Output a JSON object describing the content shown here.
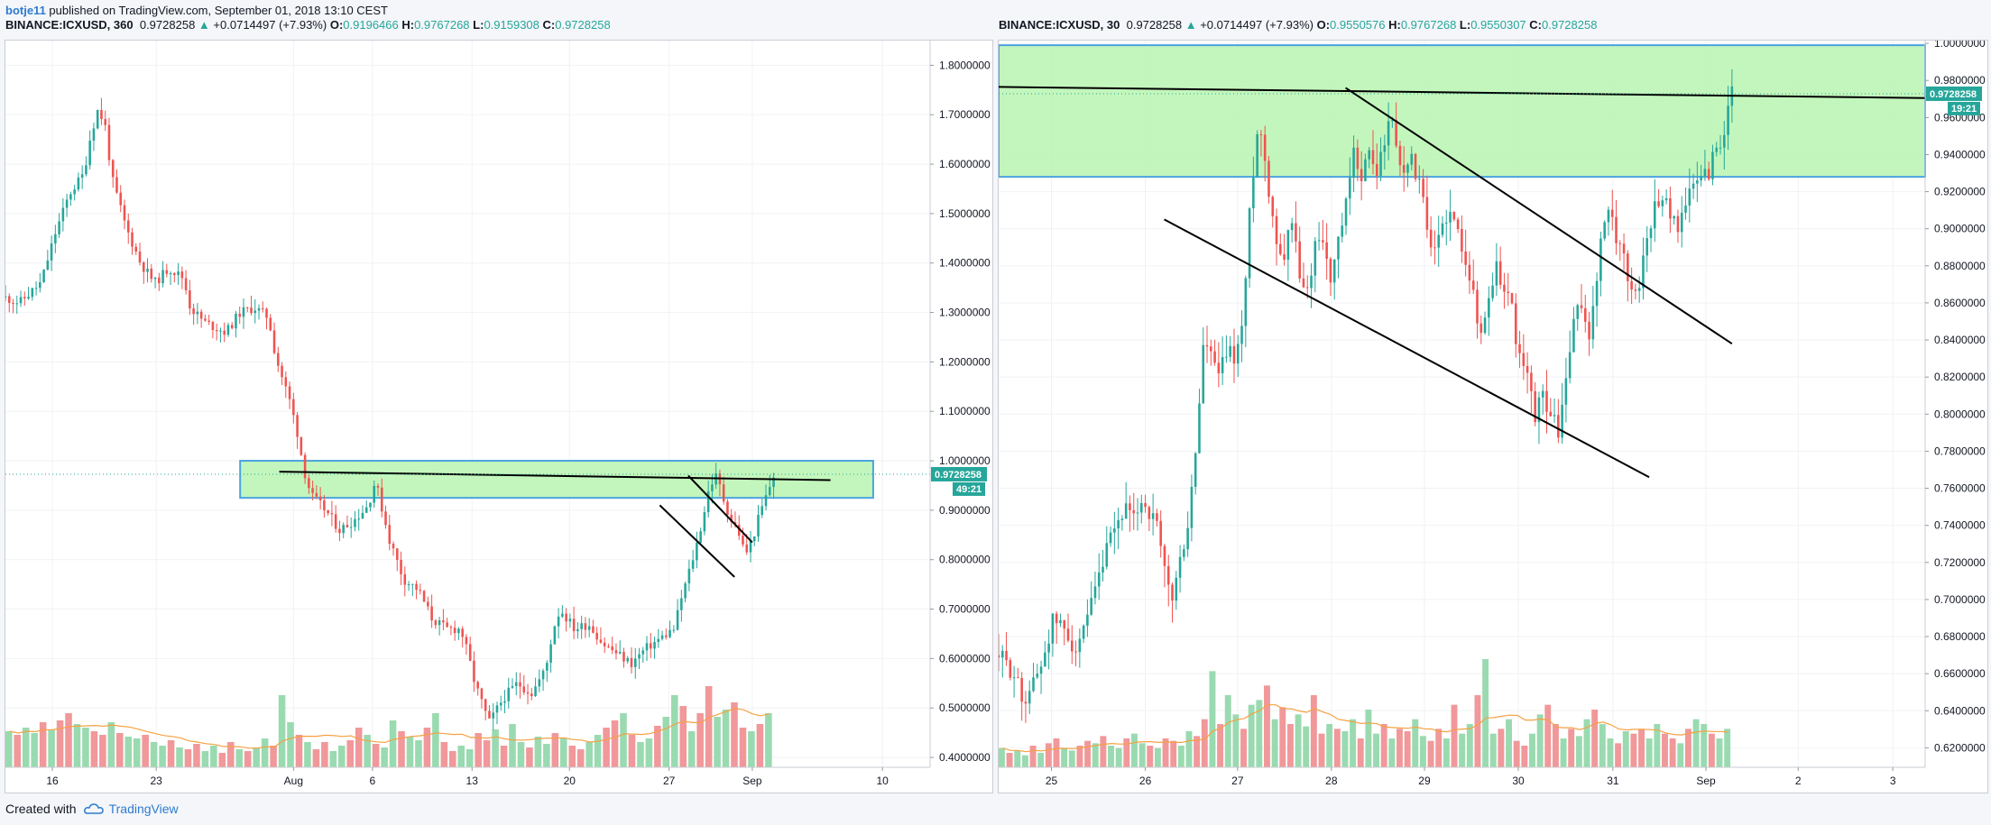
{
  "topbar": {
    "user": "botje11",
    "text": " published on TradingView.com, September 01, 2018 13:10 CEST"
  },
  "footer": {
    "created_with": "Created with",
    "brand": "TradingView"
  },
  "colors": {
    "up": "#26a69a",
    "down": "#ef5350",
    "zone_fill": "#b8f5b0",
    "zone_border": "#4aa3e0",
    "volume_up": "#8fd6a7",
    "volume_down": "#f08d8f",
    "ma": "#f5a142"
  },
  "chart_data": [
    {
      "type": "candlestick",
      "symbol": "BINANCE:ICXUSD",
      "interval": "360",
      "last": "0.9728258",
      "change": "+0.0714497 (+7.93%)",
      "O": "0.9196466",
      "H": "0.9767268",
      "L": "0.9159308",
      "C": "0.9728258",
      "price_label": "0.9728258",
      "countdown": "49:21",
      "y_ticks": [
        "1.8000000",
        "1.7000000",
        "1.6000000",
        "1.5000000",
        "1.4000000",
        "1.3000000",
        "1.2000000",
        "1.1000000",
        "1.0000000",
        "0.9000000",
        "0.8000000",
        "0.7000000",
        "0.6000000",
        "0.5000000",
        "0.4000000"
      ],
      "x_ticks": [
        "16",
        "23",
        "Aug",
        "6",
        "13",
        "20",
        "27",
        "Sep",
        "10"
      ],
      "ylim": [
        0.38,
        1.85
      ],
      "price_path": [
        [
          0,
          1.33
        ],
        [
          2,
          1.32
        ],
        [
          5,
          1.36
        ],
        [
          7,
          1.46
        ],
        [
          9,
          1.54
        ],
        [
          11,
          1.58
        ],
        [
          12,
          1.66
        ],
        [
          13,
          1.71
        ],
        [
          14,
          1.68
        ],
        [
          15,
          1.57
        ],
        [
          17,
          1.47
        ],
        [
          19,
          1.4
        ],
        [
          21,
          1.36
        ],
        [
          23,
          1.39
        ],
        [
          25,
          1.37
        ],
        [
          26,
          1.31
        ],
        [
          28,
          1.28
        ],
        [
          31,
          1.26
        ],
        [
          33,
          1.3
        ],
        [
          35,
          1.31
        ],
        [
          37,
          1.29
        ],
        [
          38,
          1.21
        ],
        [
          40,
          1.12
        ],
        [
          41,
          1.06
        ],
        [
          42,
          0.98
        ],
        [
          43,
          0.93
        ],
        [
          45,
          0.9
        ],
        [
          47,
          0.86
        ],
        [
          49,
          0.88
        ],
        [
          51,
          0.91
        ],
        [
          52,
          0.96
        ],
        [
          54,
          0.84
        ],
        [
          56,
          0.76
        ],
        [
          58,
          0.74
        ],
        [
          60,
          0.68
        ],
        [
          62,
          0.66
        ],
        [
          64,
          0.66
        ],
        [
          65,
          0.61
        ],
        [
          66,
          0.55
        ],
        [
          68,
          0.47
        ],
        [
          70,
          0.52
        ],
        [
          72,
          0.55
        ],
        [
          74,
          0.53
        ],
        [
          76,
          0.58
        ],
        [
          77,
          0.66
        ],
        [
          78,
          0.7
        ],
        [
          80,
          0.66
        ],
        [
          82,
          0.67
        ],
        [
          84,
          0.63
        ],
        [
          86,
          0.61
        ],
        [
          88,
          0.59
        ],
        [
          90,
          0.62
        ],
        [
          92,
          0.64
        ],
        [
          94,
          0.66
        ],
        [
          95,
          0.72
        ],
        [
          97,
          0.82
        ],
        [
          98,
          0.88
        ],
        [
          99,
          0.95
        ],
        [
          100,
          0.97
        ],
        [
          101,
          0.92
        ],
        [
          102,
          0.88
        ],
        [
          103,
          0.86
        ],
        [
          104,
          0.81
        ],
        [
          105,
          0.84
        ],
        [
          106,
          0.89
        ],
        [
          107,
          0.93
        ],
        [
          108,
          0.97
        ]
      ],
      "x_domain": [
        0,
        130
      ],
      "x_tick_positions": [
        6.6,
        21.2,
        40.5,
        51.6,
        65.6,
        79.3,
        93.3,
        105,
        123.3
      ],
      "volume": [
        20,
        18,
        22,
        19,
        25,
        21,
        26,
        30,
        24,
        22,
        20,
        18,
        25,
        19,
        17,
        16,
        18,
        14,
        12,
        15,
        11,
        10,
        13,
        9,
        12,
        8,
        14,
        10,
        9,
        11,
        16,
        12,
        40,
        25,
        18,
        14,
        10,
        14,
        9,
        12,
        15,
        22,
        18,
        13,
        11,
        26,
        20,
        17,
        15,
        22,
        30,
        14,
        9,
        12,
        10,
        19,
        15,
        21,
        12,
        24,
        14,
        11,
        17,
        13,
        19,
        16,
        12,
        10,
        14,
        18,
        22,
        26,
        30,
        18,
        14,
        16,
        23,
        28,
        40,
        34,
        20,
        30,
        45,
        28,
        32,
        36,
        22,
        20,
        24,
        30
      ],
      "zone": {
        "y0": 0.925,
        "y1": 1.0,
        "x0": 33,
        "x1": 122
      },
      "lines": [
        {
          "from": [
            38.5,
            0.978
          ],
          "to": [
            116,
            0.961
          ]
        },
        {
          "from": [
            92,
            0.91
          ],
          "to": [
            102.5,
            0.765
          ]
        },
        {
          "from": [
            96,
            0.97
          ],
          "to": [
            105,
            0.835
          ]
        }
      ]
    },
    {
      "type": "candlestick",
      "symbol": "BINANCE:ICXUSD",
      "interval": "30",
      "last": "0.9728258",
      "change": "+0.0714497 (+7.93%)",
      "O": "0.9550576",
      "H": "0.9767268",
      "L": "0.9550307",
      "C": "0.9728258",
      "price_label": "0.9728258",
      "countdown": "19:21",
      "y_ticks": [
        "1.0000000",
        "0.9800000",
        "0.9600000",
        "0.9400000",
        "0.9200000",
        "0.9000000",
        "0.8800000",
        "0.8600000",
        "0.8400000",
        "0.8200000",
        "0.8000000",
        "0.7800000",
        "0.7600000",
        "0.7400000",
        "0.7200000",
        "0.7000000",
        "0.6800000",
        "0.6600000",
        "0.6400000",
        "0.6200000"
      ],
      "x_ticks": [
        "25",
        "26",
        "27",
        "28",
        "29",
        "30",
        "31",
        "Sep",
        "2",
        "3"
      ],
      "ylim": [
        0.6095,
        1.0015
      ],
      "price_path": [
        [
          0,
          0.67
        ],
        [
          2,
          0.66
        ],
        [
          3,
          0.645
        ],
        [
          5,
          0.66
        ],
        [
          7,
          0.69
        ],
        [
          9,
          0.68
        ],
        [
          10,
          0.67
        ],
        [
          12,
          0.7
        ],
        [
          14,
          0.73
        ],
        [
          16,
          0.75
        ],
        [
          17,
          0.74
        ],
        [
          18,
          0.755
        ],
        [
          20,
          0.74
        ],
        [
          21,
          0.715
        ],
        [
          22,
          0.7
        ],
        [
          23,
          0.72
        ],
        [
          24,
          0.74
        ],
        [
          25,
          0.78
        ],
        [
          26,
          0.84
        ],
        [
          27,
          0.83
        ],
        [
          28,
          0.82
        ],
        [
          29,
          0.835
        ],
        [
          30,
          0.83
        ],
        [
          31,
          0.85
        ],
        [
          32,
          0.92
        ],
        [
          33,
          0.96
        ],
        [
          34,
          0.93
        ],
        [
          35,
          0.9
        ],
        [
          36,
          0.88
        ],
        [
          37,
          0.91
        ],
        [
          38,
          0.88
        ],
        [
          39,
          0.86
        ],
        [
          40,
          0.89
        ],
        [
          41,
          0.9
        ],
        [
          42,
          0.87
        ],
        [
          43,
          0.89
        ],
        [
          44,
          0.91
        ],
        [
          45,
          0.94
        ],
        [
          46,
          0.93
        ],
        [
          47,
          0.94
        ],
        [
          48,
          0.93
        ],
        [
          49,
          0.95
        ],
        [
          50,
          0.96
        ],
        [
          51,
          0.93
        ],
        [
          52,
          0.94
        ],
        [
          53,
          0.93
        ],
        [
          54,
          0.91
        ],
        [
          55,
          0.88
        ],
        [
          56,
          0.9
        ],
        [
          57,
          0.91
        ],
        [
          58,
          0.9
        ],
        [
          59,
          0.89
        ],
        [
          60,
          0.87
        ],
        [
          61,
          0.84
        ],
        [
          62,
          0.86
        ],
        [
          63,
          0.88
        ],
        [
          64,
          0.87
        ],
        [
          65,
          0.86
        ],
        [
          66,
          0.83
        ],
        [
          67,
          0.82
        ],
        [
          68,
          0.8
        ],
        [
          69,
          0.81
        ],
        [
          70,
          0.8
        ],
        [
          71,
          0.79
        ],
        [
          72,
          0.82
        ],
        [
          73,
          0.85
        ],
        [
          74,
          0.86
        ],
        [
          75,
          0.84
        ],
        [
          76,
          0.88
        ],
        [
          77,
          0.91
        ],
        [
          78,
          0.9
        ],
        [
          79,
          0.89
        ],
        [
          80,
          0.87
        ],
        [
          81,
          0.865
        ],
        [
          82,
          0.89
        ],
        [
          83,
          0.91
        ],
        [
          84,
          0.92
        ],
        [
          85,
          0.91
        ],
        [
          86,
          0.9
        ],
        [
          87,
          0.915
        ],
        [
          88,
          0.92
        ],
        [
          89,
          0.93
        ],
        [
          90,
          0.93
        ],
        [
          91,
          0.945
        ],
        [
          92,
          0.95
        ],
        [
          93,
          0.973
        ]
      ],
      "x_domain": [
        0,
        117.5
      ],
      "x_tick_positions": [
        6.7,
        18.6,
        30.3,
        42.2,
        54.0,
        65.9,
        77.9,
        89.7,
        101.4,
        113.4
      ],
      "volume": [
        8,
        6,
        7,
        5,
        9,
        6,
        10,
        12,
        8,
        7,
        9,
        11,
        10,
        13,
        9,
        8,
        12,
        14,
        10,
        9,
        8,
        12,
        11,
        9,
        15,
        13,
        20,
        40,
        18,
        30,
        22,
        16,
        26,
        28,
        34,
        20,
        25,
        18,
        22,
        17,
        30,
        14,
        18,
        16,
        15,
        20,
        12,
        24,
        14,
        18,
        12,
        16,
        15,
        20,
        13,
        11,
        16,
        12,
        26,
        14,
        18,
        30,
        45,
        14,
        16,
        20,
        11,
        9,
        14,
        22,
        26,
        18,
        12,
        16,
        13,
        20,
        24,
        18,
        12,
        10,
        15,
        14,
        16,
        12,
        18,
        14,
        12,
        10,
        16,
        20,
        18,
        14,
        12,
        16
      ],
      "zone": {
        "y0": 0.928,
        "y1": 0.999,
        "x0": 0,
        "x1": 117.5
      },
      "lines": [
        {
          "from": [
            0,
            0.9765
          ],
          "to": [
            117.5,
            0.9705
          ]
        },
        {
          "from": [
            21,
            0.905
          ],
          "to": [
            82.5,
            0.766
          ]
        },
        {
          "from": [
            44,
            0.976
          ],
          "to": [
            93,
            0.838
          ]
        }
      ]
    }
  ]
}
